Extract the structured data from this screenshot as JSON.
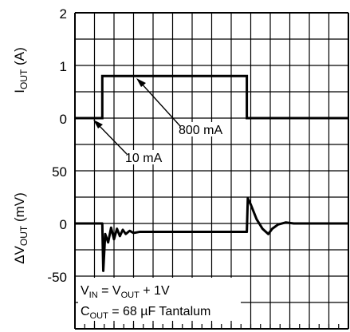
{
  "chart_data": [
    {
      "type": "line",
      "ylabel_main": "I",
      "ylabel_sub": "OUT",
      "ylabel_unit": " (A)",
      "yticks": [
        "2",
        "1",
        "0"
      ],
      "ylim": [
        0,
        2
      ],
      "series": [
        {
          "x": [
            0,
            1.4,
            1.4,
            8.8,
            8.8,
            14
          ],
          "y": [
            0,
            0,
            0.8,
            0.8,
            0,
            0
          ]
        }
      ],
      "annotations": {
        "load_high": "800 mA",
        "load_low": "10 mA"
      }
    },
    {
      "type": "line",
      "ylabel_main": "ΔV",
      "ylabel_sub": "OUT",
      "ylabel_unit": " (mV)",
      "yticks": [
        "50",
        "0",
        "-50"
      ],
      "ylim": [
        -50,
        50
      ],
      "series": [
        {
          "x": [
            0,
            1.4,
            1.45,
            1.55,
            1.7,
            1.85,
            2.0,
            2.15,
            2.3,
            2.45,
            2.6,
            2.8,
            3.0,
            3.3,
            3.6,
            8.8,
            8.85,
            9.0,
            9.3,
            9.6,
            9.9,
            10.1,
            10.4,
            10.8,
            11.2,
            14
          ],
          "y": [
            0,
            0,
            -45,
            -10,
            -18,
            -4,
            -15,
            -5,
            -12,
            -6,
            -10,
            -7,
            -9,
            -8,
            -8,
            -8,
            24,
            18,
            4,
            -5,
            -10,
            -5,
            -1,
            1,
            0,
            0
          ]
        }
      ],
      "conditions": {
        "line1_a": "V",
        "line1_a_sub": "IN",
        "line1_b": " = V",
        "line1_b_sub": "OUT",
        "line1_c": " + 1V",
        "line2_a": "C",
        "line2_a_sub": "OUT",
        "line2_b": " = 68 µF Tantalum"
      }
    }
  ]
}
